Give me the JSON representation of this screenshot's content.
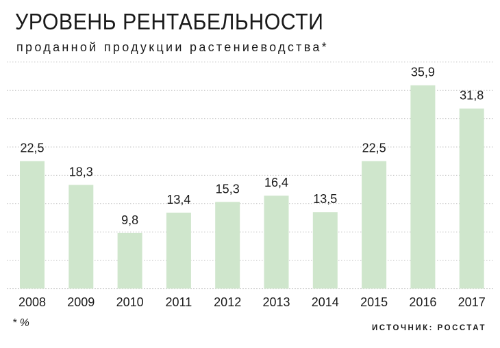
{
  "header": {
    "title": "УРОВЕНЬ РЕНТАБЕЛЬНОСТИ",
    "subtitle": "проданной продукции растениеводства*"
  },
  "footer": {
    "footnote": "* %",
    "source": "ИСТОЧНИК: РОССТАТ"
  },
  "colors": {
    "bar": "#cfe6cc",
    "grid": "#bfbfbf",
    "text": "#1a1a1a"
  },
  "chart_data": {
    "type": "bar",
    "title": "УРОВЕНЬ РЕНТАБЕЛЬНОСТИ",
    "subtitle": "проданной продукции растениеводства*",
    "xlabel": "",
    "ylabel": "",
    "categories": [
      "2008",
      "2009",
      "2010",
      "2011",
      "2012",
      "2013",
      "2014",
      "2015",
      "2016",
      "2017"
    ],
    "values": [
      22.5,
      18.3,
      9.8,
      13.4,
      15.3,
      16.4,
      13.5,
      22.5,
      35.9,
      31.8
    ],
    "value_labels": [
      "22,5",
      "18,3",
      "9,8",
      "13,4",
      "15,3",
      "16,4",
      "13,5",
      "22,5",
      "35,9",
      "31,8"
    ],
    "ylim": [
      0,
      40
    ],
    "grid": true,
    "legend": "none"
  }
}
